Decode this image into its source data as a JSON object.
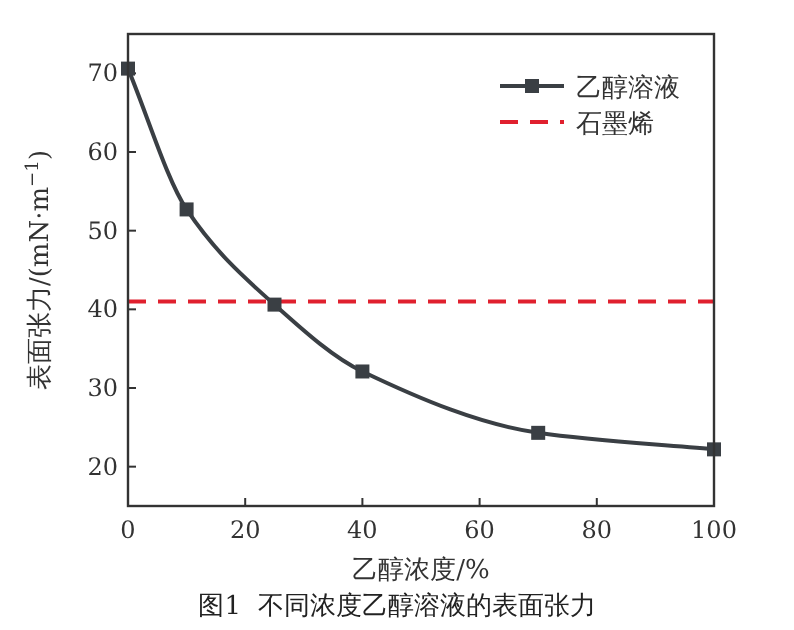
{
  "chart_data": {
    "type": "line",
    "xlabel": "乙醇浓度/%",
    "ylabel": "表面张力/(mN·m$^{−1}$)",
    "annotations": [
      "图1  不同浓度乙醇溶液的表面张力"
    ],
    "x": [
      0,
      10,
      25,
      40,
      70,
      100
    ],
    "series": [
      {
        "name": "乙醇溶液",
        "color": "#3a3f44",
        "values": [
          70.6,
          52.7,
          40.6,
          32.1,
          24.3,
          22.2
        ]
      }
    ],
    "ref_lines": [
      {
        "axis": "y",
        "value": 41.0,
        "label": "石墨烯",
        "color": "#e0202e",
        "line_style": "dashed"
      }
    ],
    "xlim": [
      0,
      100
    ],
    "xticks": [
      0,
      20,
      40,
      60,
      80,
      100
    ],
    "ylim": [
      15,
      75
    ],
    "yticks": [
      20,
      30,
      40,
      50,
      60,
      70
    ],
    "marker": "square",
    "line_style": "solid",
    "legend": "top right",
    "grid": false
  }
}
